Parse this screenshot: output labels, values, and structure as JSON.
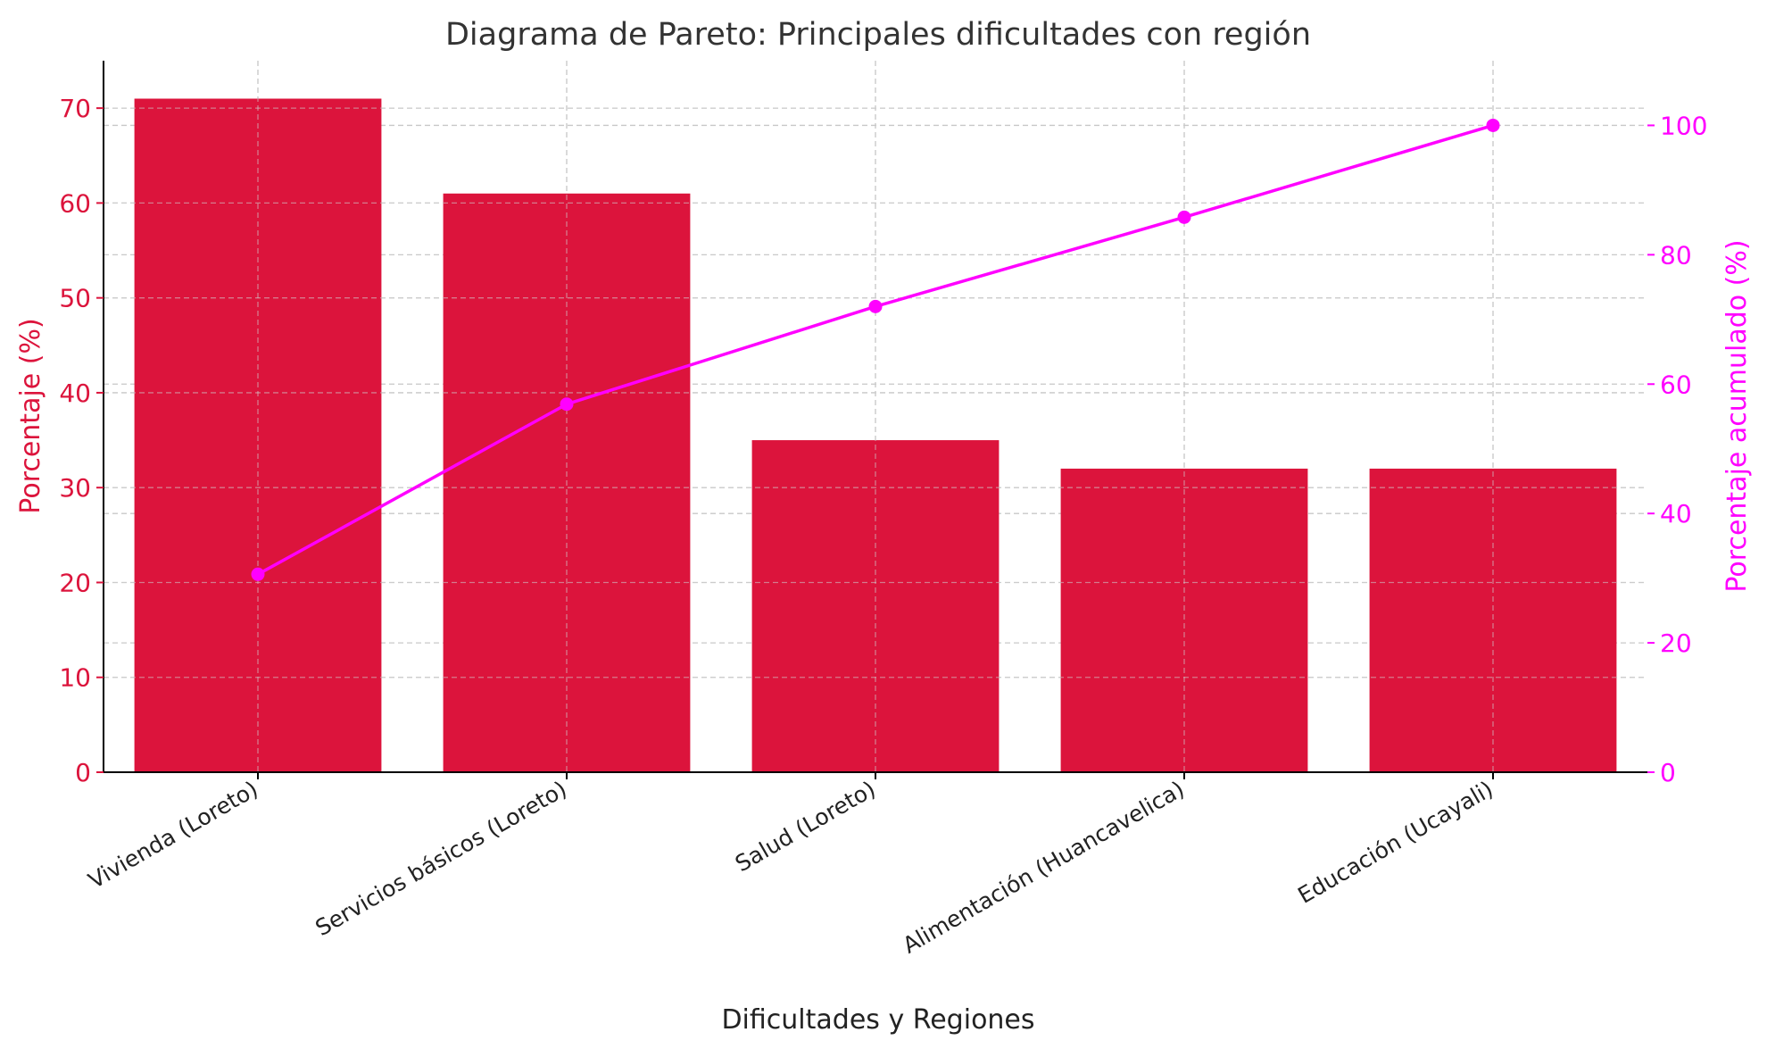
{
  "chart_data": {
    "type": "bar",
    "title": "Diagrama de Pareto: Principales dificultades con región",
    "xlabel": "Dificultades y Regiones",
    "ylabel": "Porcentaje (%)",
    "y2label": "Porcentaje acumulado (%)",
    "categories": [
      "Vivienda (Loreto)",
      "Servicios básicos (Loreto)",
      "Salud (Loreto)",
      "Alimentación (Huancavelica)",
      "Educación (Ucayali)"
    ],
    "series": [
      {
        "values": [
          71,
          61,
          35,
          32,
          32
        ],
        "axis": "left",
        "kind": "bar",
        "color": "#DC143C"
      },
      {
        "values": [
          30.6,
          56.9,
          72.0,
          85.8,
          100.0
        ],
        "axis": "right",
        "kind": "line",
        "marker": "circle",
        "color": "#FF00FF"
      }
    ],
    "ylim": [
      0,
      75
    ],
    "y2lim": [
      0,
      110
    ],
    "yticks": [
      0,
      10,
      20,
      30,
      40,
      50,
      60,
      70
    ],
    "y2ticks": [
      0,
      20,
      40,
      60,
      80,
      100
    ],
    "grid": true,
    "grid_style": "dashed",
    "left_axis_color": "#DC143C",
    "right_axis_color": "#FF00FF",
    "x_tick_rotation": 30
  }
}
